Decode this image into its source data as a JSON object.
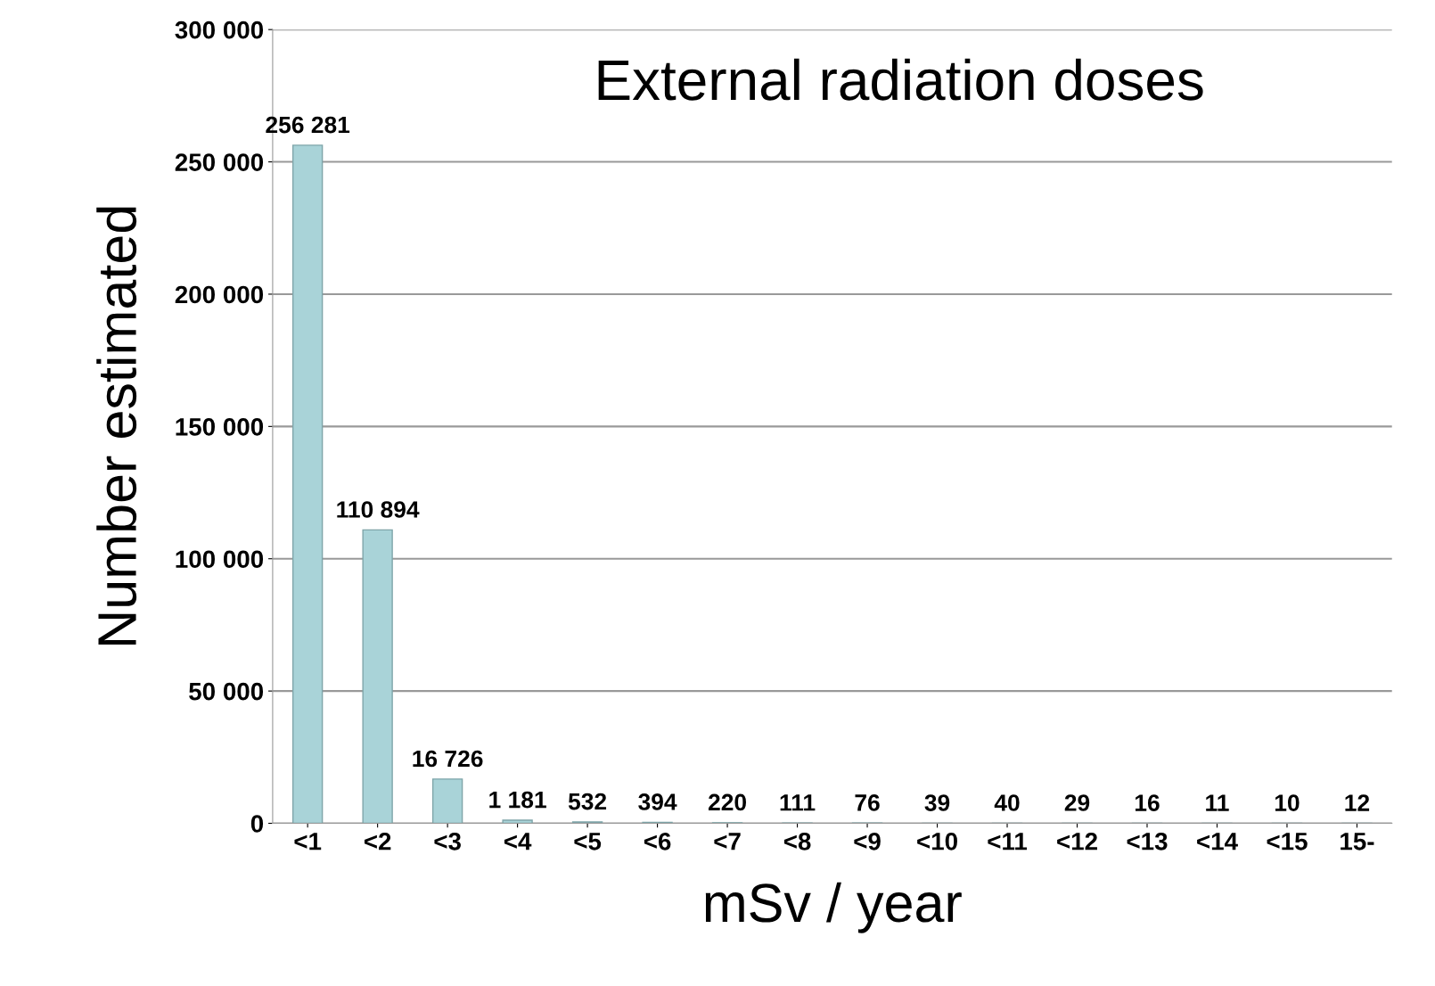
{
  "chart_data": {
    "type": "bar",
    "title": "External radiation doses",
    "xlabel": "mSv / year",
    "ylabel": "Number estimated",
    "categories": [
      "<1",
      "<2",
      "<3",
      "<4",
      "<5",
      "<6",
      "<7",
      "<8",
      "<9",
      "<10",
      "<11",
      "<12",
      "<13",
      "<14",
      "<15",
      "15-"
    ],
    "values": [
      256281,
      110894,
      16726,
      1181,
      532,
      394,
      220,
      111,
      76,
      39,
      40,
      29,
      16,
      11,
      10,
      12
    ],
    "value_labels": [
      "256 281",
      "110 894",
      "16 726",
      "1 181",
      "532",
      "394",
      "220",
      "111",
      "76",
      "39",
      "40",
      "29",
      "16",
      "11",
      "10",
      "12"
    ],
    "color": "#a9d3d8",
    "ylim": [
      0,
      300000
    ],
    "yticks": [
      {
        "value": 0,
        "label": "0"
      },
      {
        "value": 50000,
        "label": "50 000"
      },
      {
        "value": 100000,
        "label": "100 000"
      },
      {
        "value": 150000,
        "label": "150 000"
      },
      {
        "value": 200000,
        "label": "200 000"
      },
      {
        "value": 250000,
        "label": "250 000"
      },
      {
        "value": 300000,
        "label": "300 000"
      }
    ],
    "grid": "y",
    "legend": false
  }
}
